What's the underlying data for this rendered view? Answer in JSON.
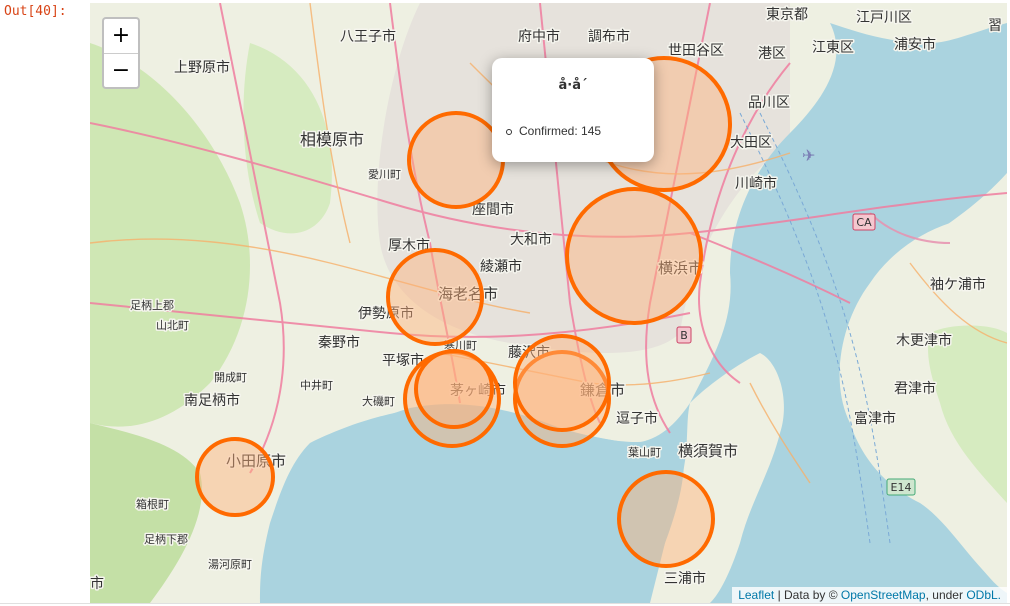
{
  "output_prompt": "Out[40]:",
  "zoom": {
    "in_label": "+",
    "out_label": "−"
  },
  "popup": {
    "title": "å·å´",
    "content": "Confirmed: 145"
  },
  "attribution": {
    "leaflet": "Leaflet",
    "sep": " | Data by © ",
    "osm": "OpenStreetMap",
    "under": ", under ",
    "odbl": "ODbL."
  },
  "colors": {
    "circle_stroke": "#ff6a00",
    "circle_fill": "#ffb27a",
    "sea": "#aad3df",
    "land": "#eef0e2",
    "green": "#cfe7b4",
    "road_major": "#f07ea0"
  },
  "map_labels": [
    "東京都",
    "江戸川区",
    "八王子市",
    "府中市",
    "調布市",
    "世田谷区",
    "港区",
    "江東区",
    "浦安市",
    "上野原市",
    "品川区",
    "大田区",
    "相模原市",
    "愛川町",
    "座間市",
    "川崎市",
    "大和市",
    "厚木市",
    "綾瀬市",
    "横浜市",
    "海老名市",
    "伊勢原市",
    "足柄上郡",
    "山北町",
    "秦野市",
    "平塚市",
    "寒川町",
    "藤沢市",
    "開成町",
    "中井町",
    "南足柄市",
    "大磯町",
    "茅ヶ崎市",
    "鎌倉市",
    "逗子市",
    "葉山町",
    "横須賀市",
    "小田原市",
    "箱根町",
    "足柄下郡",
    "湯河原町",
    "三浦市",
    "袖ケ浦市",
    "木更津市",
    "君津市",
    "富津市",
    "CA",
    "B",
    "E14",
    "習"
  ],
  "markers": [
    {
      "name": "相模原",
      "confirmed": ""
    },
    {
      "name": "東京/川崎北",
      "confirmed": ""
    },
    {
      "name": "横浜",
      "confirmed": ""
    },
    {
      "name": "海老名",
      "confirmed": ""
    },
    {
      "name": "茅ヶ崎",
      "confirmed": ""
    },
    {
      "name": "藤沢/鎌倉",
      "confirmed": ""
    },
    {
      "name": "小田原",
      "confirmed": ""
    },
    {
      "name": "横須賀/三浦",
      "confirmed": ""
    }
  ]
}
